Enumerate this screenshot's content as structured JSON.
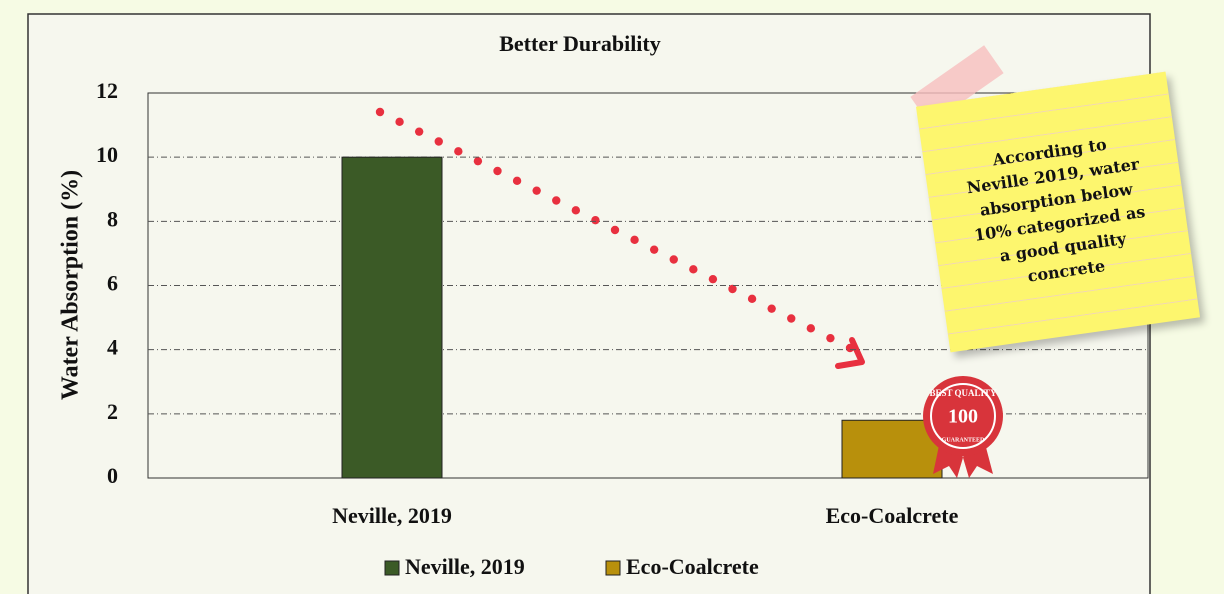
{
  "chart_data": {
    "type": "bar",
    "title": "Better Durability",
    "y_label": "Water Absorption (%)",
    "categories": [
      "Neville, 2019",
      "Eco-Coalcrete"
    ],
    "values": [
      10,
      1.8
    ],
    "colors": [
      "#3b5a26",
      "#b8900c"
    ],
    "ylim": [
      0,
      12
    ],
    "yticks": [
      0,
      2,
      4,
      6,
      8,
      10,
      12
    ],
    "grid": true,
    "legend": "bottom",
    "annotation": [
      "According to",
      "Neville 2019, water",
      "absorption below",
      "10% categorized as",
      "a good quality",
      "concrete"
    ],
    "badge": [
      "BEST QUALITY",
      "100",
      "GUARANTEED"
    ]
  }
}
